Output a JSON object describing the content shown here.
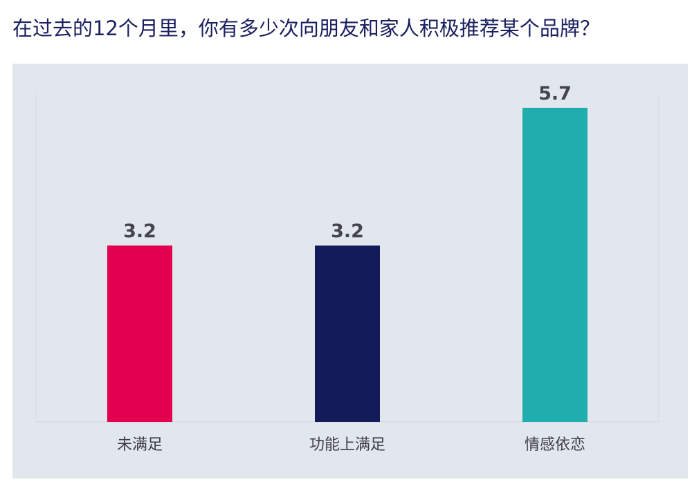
{
  "page": {
    "title": "在过去的12个月里，你有多少次向朋友和家人积极推荐某个品牌？"
  },
  "chart_data": {
    "type": "bar",
    "title": "在过去的12个月里，你有多少次向朋友和家人积极推荐某个品牌？",
    "categories": [
      "未满足",
      "功能上满足",
      "情感依恋"
    ],
    "values": [
      3.2,
      3.2,
      5.7
    ],
    "value_labels": [
      "3.2",
      "3.2",
      "5.7"
    ],
    "colors": [
      "#e2004f",
      "#141b5a",
      "#1fadad"
    ],
    "xlabel": "",
    "ylabel": "",
    "ylim": [
      0,
      6
    ],
    "grid": false,
    "legend": "none",
    "background": "#e1e7ec"
  }
}
